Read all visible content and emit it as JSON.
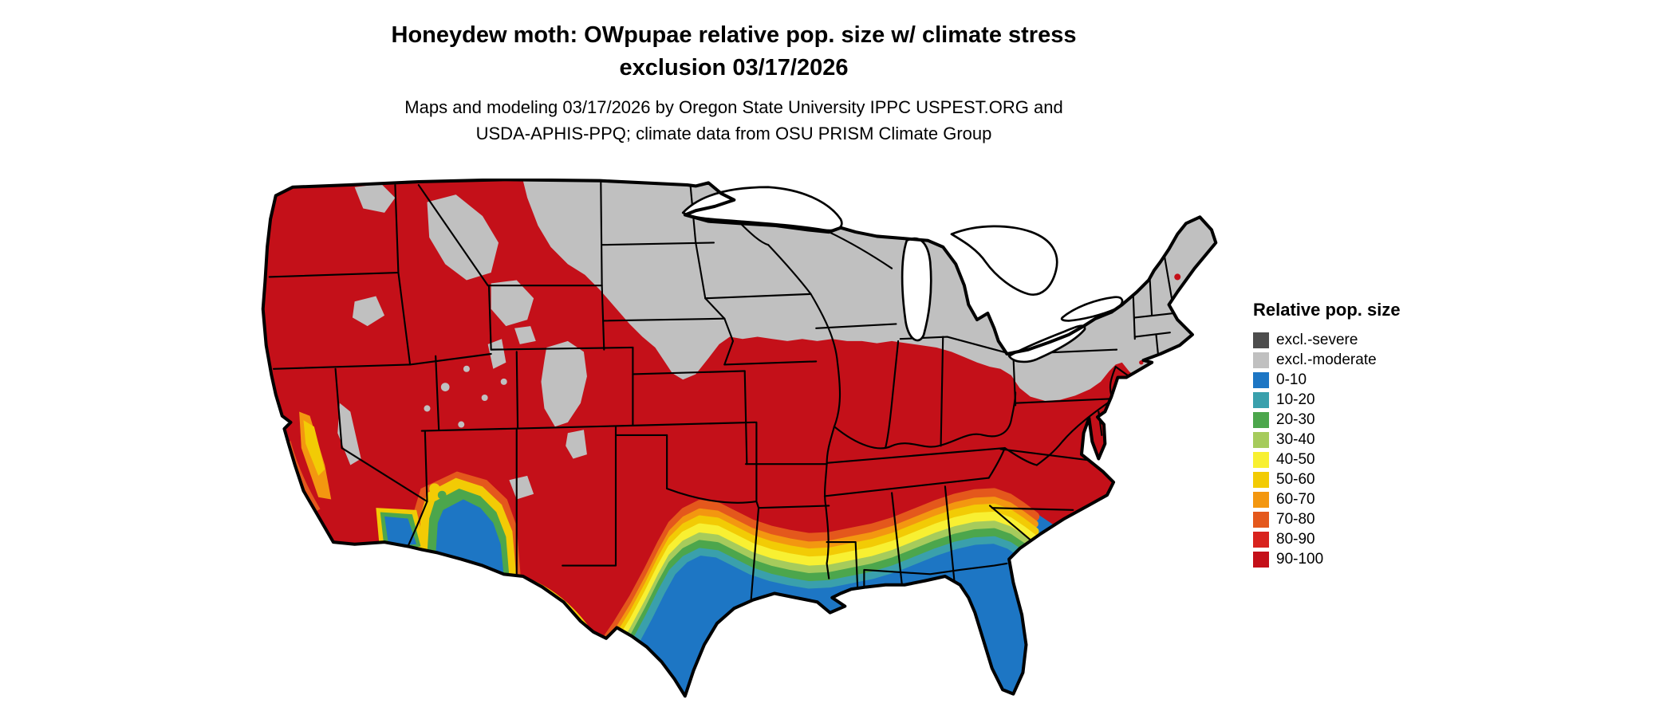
{
  "title": {
    "line1": "Honeydew moth: OWpupae relative pop. size w/ climate stress",
    "line2": "exclusion 03/17/2026"
  },
  "subtitle": {
    "line1": "Maps and modeling 03/17/2026 by Oregon State University IPPC USPEST.ORG and",
    "line2": "USDA-APHIS-PPQ; climate data from OSU PRISM Climate Group"
  },
  "legend": {
    "title": "Relative pop. size",
    "items": [
      {
        "label": "excl.-severe",
        "color": "#4D4D4D"
      },
      {
        "label": "excl.-moderate",
        "color": "#C0C0C0"
      },
      {
        "label": "0-10",
        "color": "#1D76C4"
      },
      {
        "label": "10-20",
        "color": "#3AA0AC"
      },
      {
        "label": "20-30",
        "color": "#4CA64C"
      },
      {
        "label": "30-40",
        "color": "#A6CB5C"
      },
      {
        "label": "40-50",
        "color": "#F8F032"
      },
      {
        "label": "50-60",
        "color": "#F2CB05"
      },
      {
        "label": "60-70",
        "color": "#F39710"
      },
      {
        "label": "70-80",
        "color": "#E4581C"
      },
      {
        "label": "80-90",
        "color": "#D8231E"
      },
      {
        "label": "90-100",
        "color": "#C41019"
      }
    ]
  }
}
